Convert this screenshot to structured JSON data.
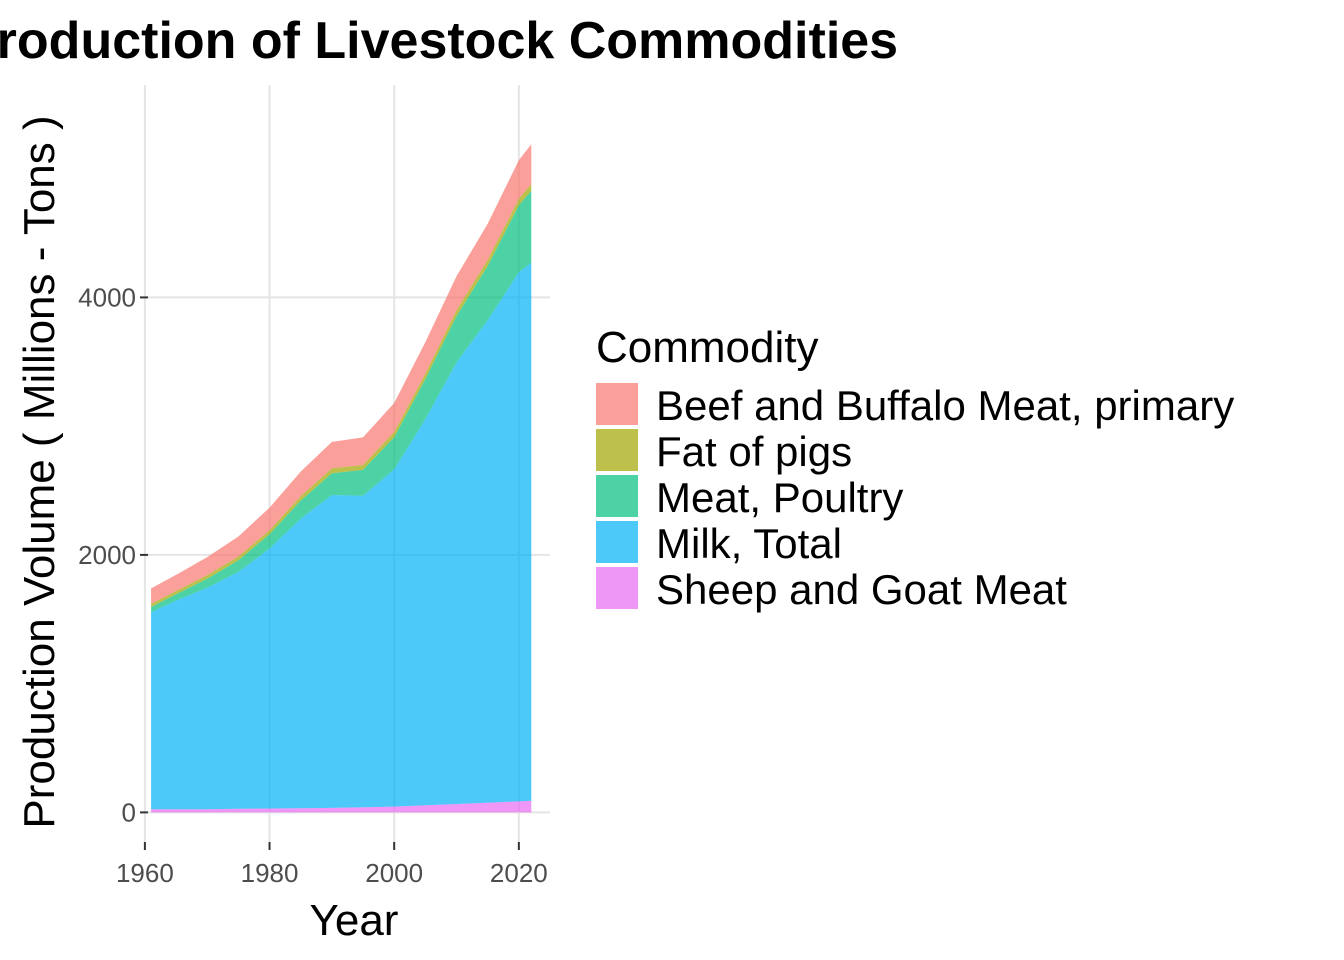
{
  "chart_data": {
    "type": "area",
    "stacked": true,
    "title": "Production of Livestock Commodities",
    "xlabel": "Year",
    "ylabel": "Production Volume ( Millions - Tons )",
    "xlim": [
      1960.5,
      2025
    ],
    "ylim": [
      -230,
      5650
    ],
    "x_ticks": [
      1960,
      1980,
      2000,
      2020
    ],
    "y_ticks": [
      0,
      2000,
      4000
    ],
    "grid": true,
    "legend": {
      "title": "Commodity",
      "position": "right"
    },
    "stack_order": [
      "Sheep and Goat Meat",
      "Milk, Total",
      "Meat, Poultry",
      "Fat of pigs",
      "Beef and Buffalo Meat, primary"
    ],
    "x": [
      1961,
      1965,
      1970,
      1975,
      1980,
      1985,
      1990,
      1995,
      2000,
      2005,
      2010,
      2015,
      2020,
      2022
    ],
    "series": [
      {
        "name": "Beef and Buffalo Meat, primary",
        "color": "#F8766D",
        "values": [
          120,
          125,
          140,
          155,
          175,
          190,
          205,
          215,
          225,
          245,
          265,
          280,
          300,
          310
        ]
      },
      {
        "name": "Fat of pigs",
        "color": "#A3A500",
        "values": [
          25,
          25,
          28,
          30,
          32,
          35,
          38,
          38,
          40,
          42,
          45,
          47,
          50,
          50
        ]
      },
      {
        "name": "Meat, Poultry",
        "color": "#00BF7D",
        "values": [
          40,
          50,
          70,
          90,
          110,
          140,
          170,
          200,
          250,
          310,
          360,
          420,
          520,
          560
        ]
      },
      {
        "name": "Milk, Total",
        "color": "#00B0F6",
        "values": [
          1530,
          1620,
          1720,
          1840,
          2020,
          2250,
          2430,
          2420,
          2620,
          3000,
          3430,
          3750,
          4110,
          4180
        ]
      },
      {
        "name": "Sheep and Goat Meat",
        "color": "#E76BF3",
        "values": [
          25,
          25,
          25,
          28,
          30,
          32,
          35,
          40,
          45,
          55,
          65,
          75,
          85,
          90
        ]
      }
    ]
  }
}
